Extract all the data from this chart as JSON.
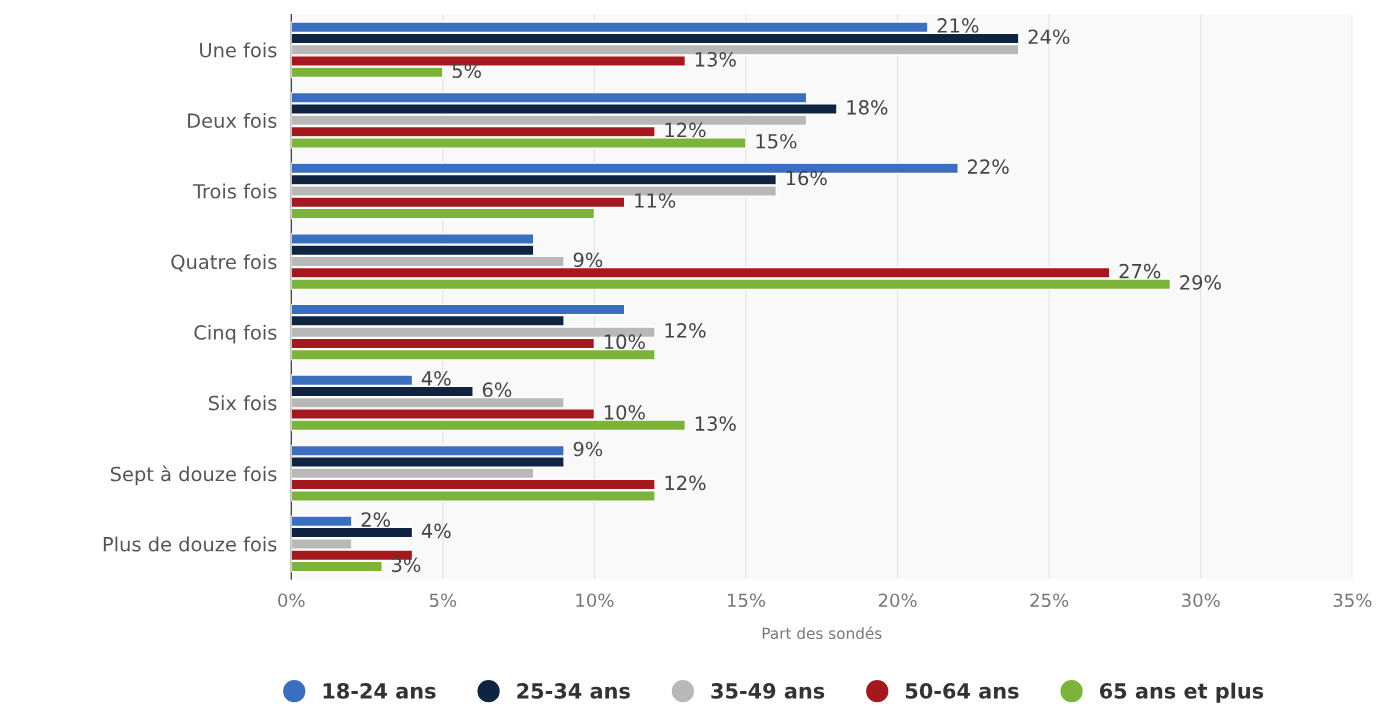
{
  "chart_data": {
    "type": "bar",
    "orientation": "horizontal",
    "xlabel": "Part des sondés",
    "categories": [
      "Une fois",
      "Deux fois",
      "Trois fois",
      "Quatre fois",
      "Cinq fois",
      "Six fois",
      "Sept à douze fois",
      "Plus de douze fois"
    ],
    "series": [
      {
        "name": "18-24 ans",
        "color": "#3a6fbf",
        "values": [
          21,
          17,
          22,
          8,
          11,
          4,
          9,
          2
        ],
        "value_labels": [
          "21%",
          null,
          "22%",
          null,
          null,
          "4%",
          "9%",
          "2%"
        ]
      },
      {
        "name": "25-34 ans",
        "color": "#0f2440",
        "values": [
          24,
          18,
          16,
          8,
          9,
          6,
          9,
          4
        ],
        "value_labels": [
          "24%",
          "18%",
          "16%",
          null,
          null,
          "6%",
          null,
          "4%"
        ]
      },
      {
        "name": "35-49 ans",
        "color": "#b8b8b8",
        "values": [
          24,
          17,
          16,
          9,
          12,
          9,
          8,
          2
        ],
        "value_labels": [
          null,
          null,
          null,
          "9%",
          "12%",
          null,
          null,
          null
        ]
      },
      {
        "name": "50-64 ans",
        "color": "#a5191e",
        "values": [
          13,
          12,
          11,
          27,
          10,
          10,
          12,
          4
        ],
        "value_labels": [
          "13%",
          "12%",
          "11%",
          "27%",
          "10%",
          "10%",
          "12%",
          null
        ]
      },
      {
        "name": "65 ans et plus",
        "color": "#7cb33a",
        "values": [
          5,
          15,
          10,
          29,
          12,
          13,
          12,
          3
        ],
        "value_labels": [
          "5%",
          "15%",
          null,
          "29%",
          null,
          "13%",
          null,
          "3%"
        ]
      }
    ],
    "xlim": [
      0,
      35
    ],
    "xticks": [
      {
        "value": 0,
        "label": "0%"
      },
      {
        "value": 5,
        "label": "5%"
      },
      {
        "value": 10,
        "label": "10%"
      },
      {
        "value": 15,
        "label": "15%"
      },
      {
        "value": 20,
        "label": "20%"
      },
      {
        "value": 25,
        "label": "25%"
      },
      {
        "value": 30,
        "label": "30%"
      },
      {
        "value": 35,
        "label": "35%"
      }
    ],
    "grid": "x",
    "legend": "bottom"
  }
}
